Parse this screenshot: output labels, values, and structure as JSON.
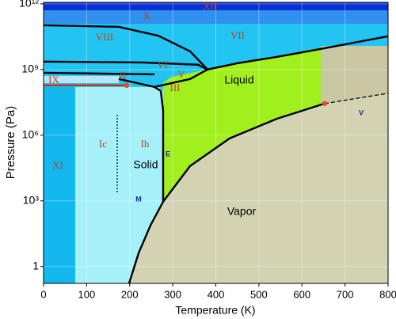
{
  "chart_data": {
    "type": "phase",
    "xlabel": "Temperature (K)",
    "ylabel": "Pressure (Pa)",
    "xlim": [
      0,
      800
    ],
    "ylim": [
      0.17,
      1170000000000.0
    ],
    "log_y": true,
    "grid": true,
    "xticks": [
      0,
      100,
      200,
      300,
      400,
      500,
      600,
      700,
      800
    ],
    "yticks": [
      1,
      {
        "value": 1000,
        "label": "10³"
      },
      {
        "value": 1000000,
        "label": "10⁶"
      },
      {
        "value": 1000000000,
        "label": "10⁹"
      },
      {
        "value": 1000000000000,
        "label": "10¹²"
      }
    ],
    "regions": [
      {
        "color": "#0a2fd6",
        "x": [
          0,
          800,
          800,
          0
        ],
        "y": [
          1170000000000.0,
          1170000000000.0,
          510000000000.0,
          510000000000.0
        ]
      },
      {
        "color": "#2f90ee",
        "x": [
          0,
          800,
          800,
          0
        ],
        "y": [
          510000000000.0,
          510000000000.0,
          124000000000.0,
          124000000000.0
        ]
      },
      {
        "color": "#12b8ee",
        "x": [
          0,
          73.6,
          73.6,
          0
        ],
        "y": [
          160000000.0,
          160000000.0,
          0.17,
          0.17
        ]
      },
      {
        "color": "#a6f0fa",
        "x": [
          73.6,
          266.7,
          277.7,
          277.7,
          248.3,
          220.7,
          198.6,
          73.6
        ],
        "y": [
          160000000.0,
          160000000.0,
          105000000.0,
          920,
          76,
          4.1,
          0.17,
          0.17
        ]
      },
      {
        "color": "#b8e6f6",
        "x": [
          0,
          174.7,
          174.7,
          0
        ],
        "y": [
          510000000.0,
          510000000.0,
          240000000.0,
          240000000.0
        ]
      },
      {
        "color": "#a2ef1e",
        "x": [
          277.7,
          277.7,
          294.3,
          377,
          450.6,
          542.5,
          643.7,
          643.7,
          542.5,
          432.2,
          340.2
        ],
        "y": [
          920,
          240000000.0,
          440000000.0,
          1000000000.0,
          1950000000.0,
          3800000000.0,
          8700000000.0,
          26000000.0,
          5700000.0,
          720000.0,
          39000.0
        ]
      },
      {
        "color": "#d3d3b3",
        "x": [
          198.6,
          220.7,
          248.3,
          277.7,
          340.2,
          432.2,
          542.5,
          652.9,
          800,
          800
        ],
        "y": [
          0.17,
          4.1,
          76,
          920,
          39000.0,
          720000.0,
          5700000.0,
          28000000.0,
          82000000.0,
          0.17
        ]
      },
      {
        "color": "#c9c7a4",
        "x": [
          643.7,
          800,
          800,
          652.9,
          643.7
        ],
        "y": [
          12000000000.0,
          12000000000.0,
          82000000.0,
          28000000.0,
          26000000.0
        ]
      }
    ],
    "curves": [
      {
        "color": "#000000",
        "x": [
          0,
          174.7,
          266.7,
          340.2,
          380.7
        ],
        "y": [
          105000000000.0,
          89000000000.0,
          35000000000.0,
          6800000000.0,
          1000000000.0
        ]
      },
      {
        "color": "#000000",
        "x": [
          0,
          229.9,
          358.6,
          380.7
        ],
        "y": [
          2300000000.0,
          2100000000.0,
          1660000000.0,
          1000000000.0
        ]
      },
      {
        "color": "#000000",
        "x": [
          0,
          257.5
        ],
        "y": [
          710000000.0,
          600000000.0
        ]
      },
      {
        "color": "#000000",
        "x": [
          380.7,
          450.6,
          542.5,
          643.7,
          800
        ],
        "y": [
          1000000000.0,
          1950000000.0,
          3800000000.0,
          8700000000.0,
          33000000000.0
        ]
      },
      {
        "color": "#d03010",
        "x": [
          0,
          193.1
        ],
        "y": [
          190000000.0,
          190000000.0
        ]
      },
      {
        "color": "#000000",
        "x": [
          174.7,
          257.5,
          340.2,
          380.7
        ],
        "y": [
          370000000.0,
          160000000.0,
          370000000.0,
          1000000000.0
        ]
      },
      {
        "color": "#000000",
        "x": [
          257.5,
          272.2,
          277.7,
          277.7
        ],
        "y": [
          160000000.0,
          105000000.0,
          13000000.0,
          920
        ]
      },
      {
        "color": "#000000",
        "x": [
          198.6,
          220.7,
          248.3,
          277.7,
          340.2,
          432.2,
          542.5,
          652.9
        ],
        "y": [
          0.17,
          4.1,
          76,
          920,
          39000.0,
          720000.0,
          5700000.0,
          28000000.0
        ]
      },
      {
        "color": "#000000",
        "dashed": true,
        "x": [
          652.9,
          800
        ],
        "y": [
          28000000.0,
          82000000.0
        ]
      }
    ],
    "points": {
      "color": "#e04a2a",
      "x": [
        193.1,
        652.9
      ],
      "y": [
        190000000.0,
        28000000.0
      ]
    },
    "labels": [
      "XII",
      "X",
      "VIII",
      "VII",
      "VI",
      "V",
      "IX",
      "II",
      "III",
      "Liquid",
      "Ic",
      "Ih",
      "Solid",
      "E",
      "XI",
      "M",
      "Vapor",
      "V"
    ]
  }
}
